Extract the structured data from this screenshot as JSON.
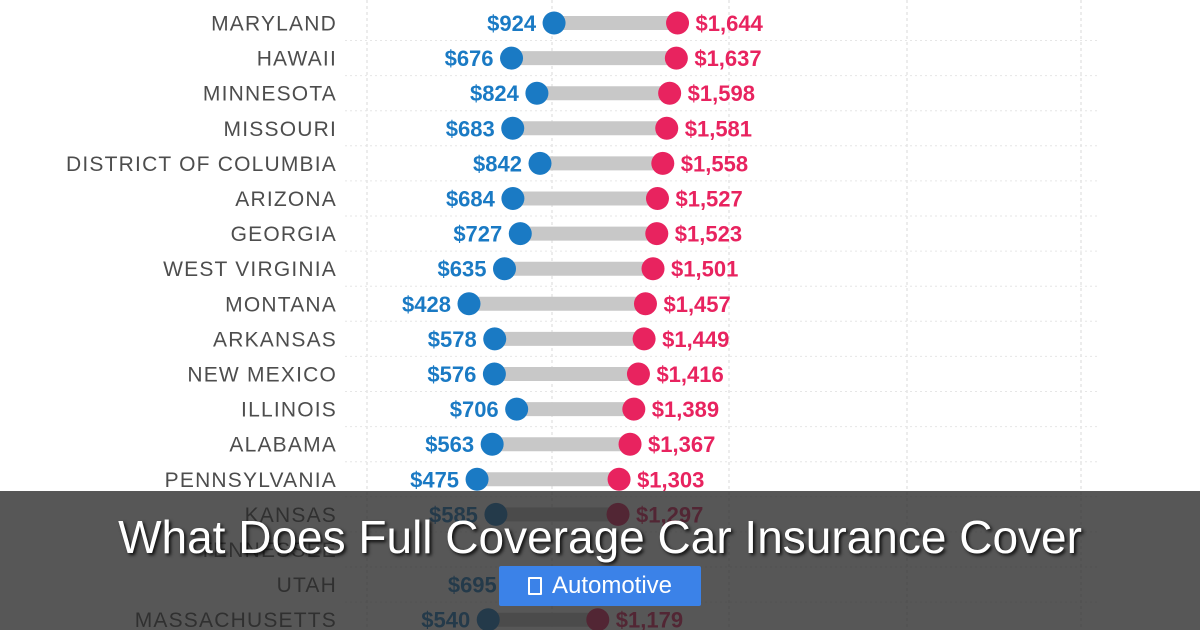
{
  "title": "What Does Full Coverage Car Insurance Cover",
  "category": {
    "label": "Automotive",
    "icon": "category-icon"
  },
  "colors": {
    "low": "#1a7ac4",
    "high": "#e8235f",
    "connector": "#c8c8c8",
    "badge": "#3b82e8"
  },
  "chart_data": {
    "type": "dumbbell",
    "categories": [
      "MARYLAND",
      "HAWAII",
      "MINNESOTA",
      "MISSOURI",
      "DISTRICT OF COLUMBIA",
      "ARIZONA",
      "GEORGIA",
      "WEST VIRGINIA",
      "MONTANA",
      "ARKANSAS",
      "NEW MEXICO",
      "ILLINOIS",
      "ALABAMA",
      "PENNSYLVANIA",
      "KANSAS",
      "TENNESSEE",
      "UTAH",
      "MASSACHUSETTS"
    ],
    "series": [
      {
        "values": [
          924,
          676,
          824,
          683,
          842,
          684,
          727,
          635,
          428,
          578,
          576,
          706,
          563,
          475,
          585,
          null,
          695,
          540
        ],
        "labels": [
          "$924",
          "$676",
          "$824",
          "$683",
          "$842",
          "$684",
          "$727",
          "$635",
          "$428",
          "$578",
          "$576",
          "$706",
          "$563",
          "$475",
          "$585",
          "",
          "$695",
          "$540"
        ]
      },
      {
        "values": [
          1644,
          1637,
          1598,
          1581,
          1558,
          1527,
          1523,
          1501,
          1457,
          1449,
          1416,
          1389,
          1367,
          1303,
          1297,
          null,
          null,
          1179
        ],
        "labels": [
          "$1,644",
          "$1,637",
          "$1,598",
          "$1,581",
          "$1,558",
          "$1,527",
          "$1,523",
          "$1,501",
          "$1,457",
          "$1,449",
          "$1,416",
          "$1,389",
          "$1,367",
          "$1,303",
          "$1,297",
          "",
          "",
          "$1,179"
        ]
      }
    ]
  }
}
